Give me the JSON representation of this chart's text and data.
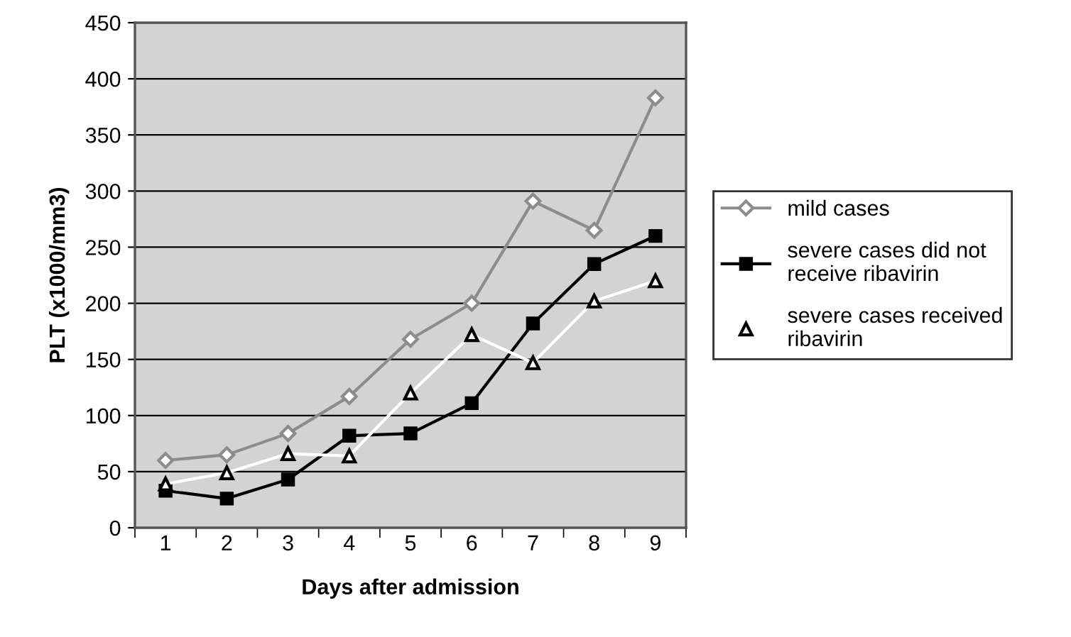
{
  "chart_data": {
    "type": "line",
    "xlabel": "Days after admission",
    "ylabel": "PLT (x1000/mm3)",
    "categories": [
      "1",
      "2",
      "3",
      "4",
      "5",
      "6",
      "7",
      "8",
      "9"
    ],
    "series": [
      {
        "name": "mild cases",
        "color": "#8c8c8c",
        "marker": "diamond",
        "values": [
          60,
          65,
          84,
          117,
          168,
          200,
          291,
          265,
          383
        ]
      },
      {
        "name": "severe cases did not receive ribavirin",
        "color": "#000000",
        "marker": "square",
        "values": [
          33,
          26,
          43,
          82,
          84,
          111,
          182,
          235,
          260
        ]
      },
      {
        "name": "severe cases received ribavirin",
        "color": "#ffffff",
        "marker": "triangle",
        "values": [
          39,
          49,
          66,
          64,
          120,
          172,
          147,
          202,
          220
        ]
      }
    ],
    "ylim": [
      0,
      450
    ],
    "yticks": [
      0,
      50,
      100,
      150,
      200,
      250,
      300,
      350,
      400,
      450
    ],
    "grid": "y",
    "legend": "right"
  }
}
